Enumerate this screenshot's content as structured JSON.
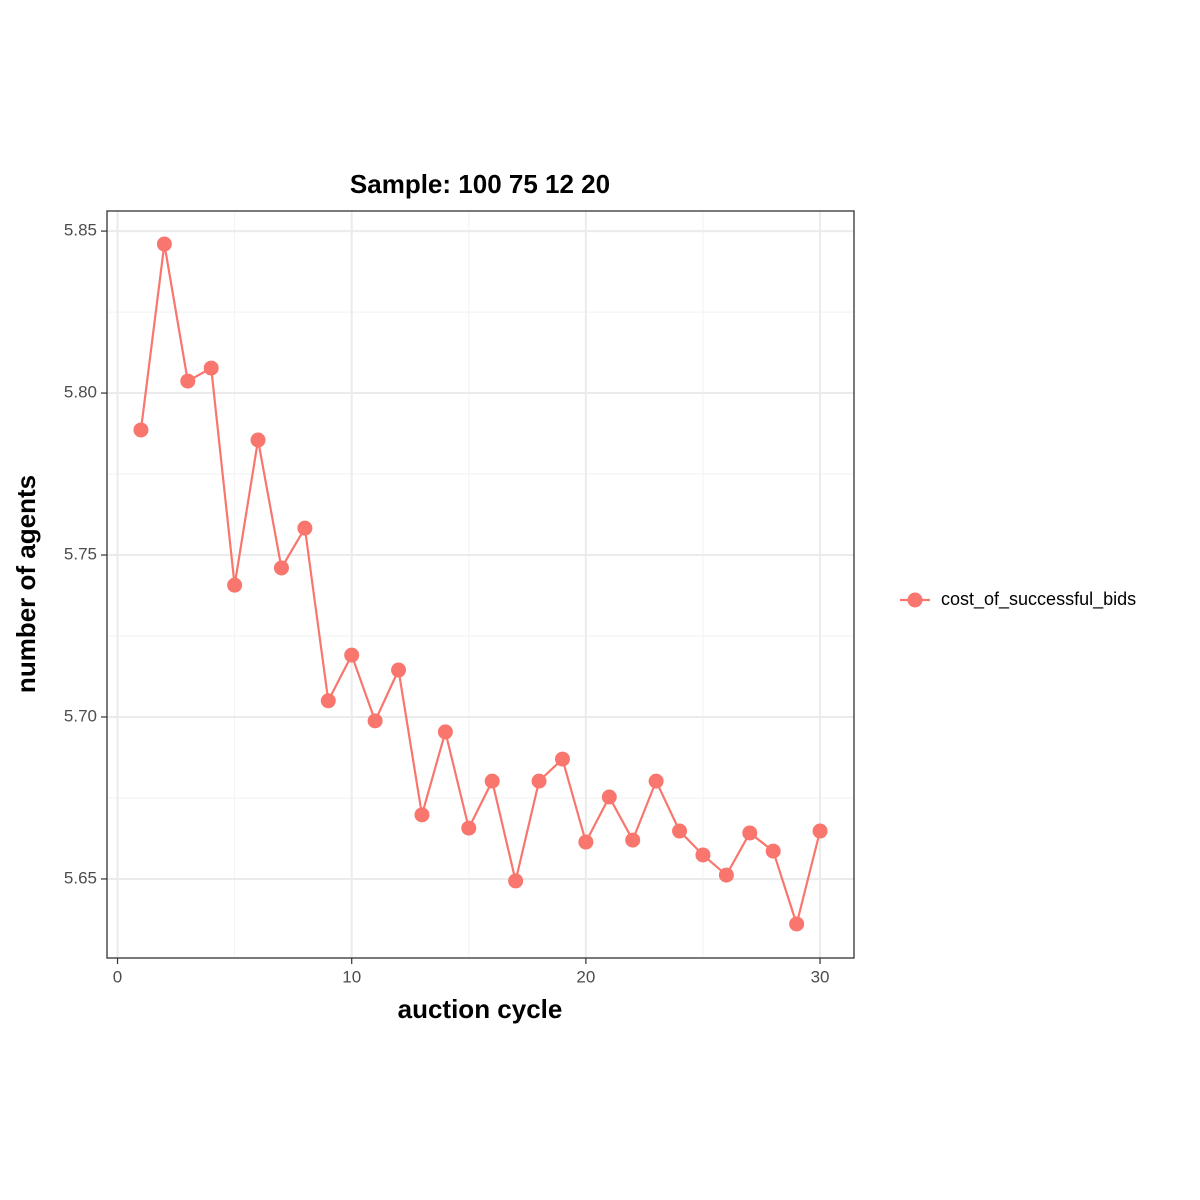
{
  "chart_data": {
    "type": "line",
    "title": "Sample: 100 75 12 20",
    "x_label": "auction cycle",
    "y_label": "number of agents",
    "x": [
      1,
      2,
      3,
      4,
      5,
      6,
      7,
      8,
      9,
      10,
      11,
      12,
      13,
      14,
      15,
      16,
      17,
      18,
      19,
      20,
      21,
      22,
      23,
      24,
      25,
      26,
      27,
      28,
      29,
      30
    ],
    "series": [
      {
        "name": "cost_of_successful_bids",
        "color": "#f8766d",
        "values": [
          5.7886,
          5.846,
          5.8037,
          5.8077,
          5.7407,
          5.7855,
          5.746,
          5.7583,
          5.705,
          5.7191,
          5.6988,
          5.7145,
          5.6698,
          5.6954,
          5.6657,
          5.6802,
          5.6494,
          5.6802,
          5.687,
          5.6614,
          5.6753,
          5.662,
          5.6802,
          5.6648,
          5.6574,
          5.6512,
          5.6642,
          5.6586,
          5.6361,
          5.6648
        ]
      }
    ],
    "xlim": [
      -0.45,
      31.45
    ],
    "xticks": [
      0,
      10,
      20,
      30
    ],
    "ylim": [
      5.6256,
      5.8562
    ],
    "yticks": [
      {
        "value": 5.65,
        "label": "5.65"
      },
      {
        "value": 5.7,
        "label": "5.70"
      },
      {
        "value": 5.75,
        "label": "5.75"
      },
      {
        "value": 5.8,
        "label": "5.80"
      },
      {
        "value": 5.85,
        "label": "5.85"
      }
    ],
    "grid": true,
    "legend": "right"
  }
}
